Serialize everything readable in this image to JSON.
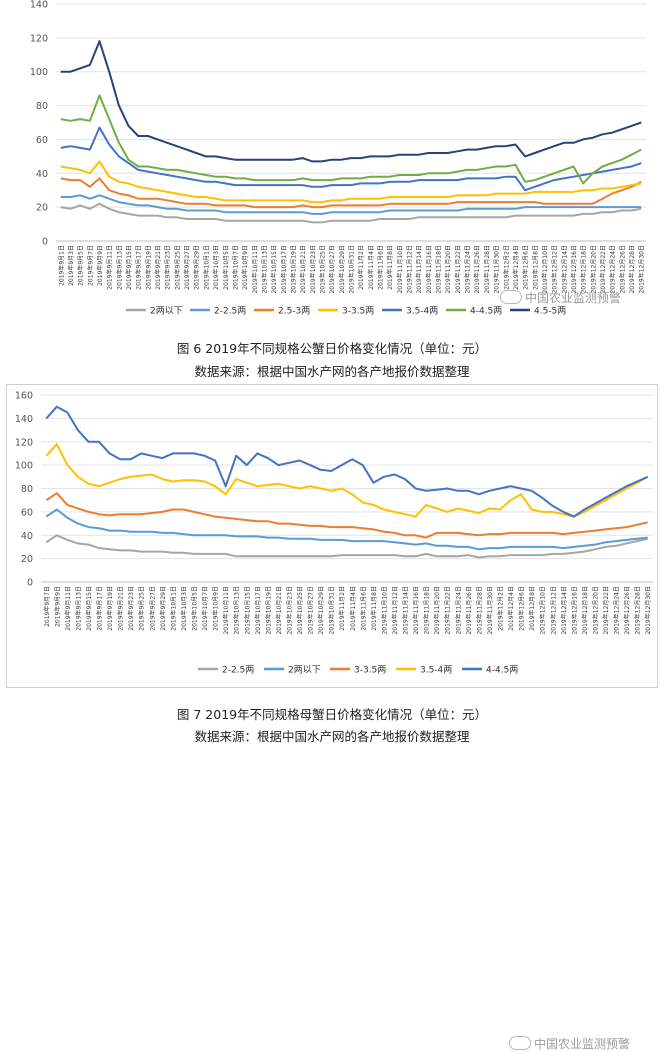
{
  "charts": [
    {
      "caption": "图 6 2019年不同规格公蟹日价格变化情况（单位：元）",
      "source": "数据来源：根据中国水产网的各产地报价数据整理",
      "watermark": "中国农业监测预警",
      "chart_data": {
        "type": "line",
        "title": "",
        "ylim": [
          0,
          140
        ],
        "yticks": [
          0,
          20,
          40,
          60,
          80,
          100,
          120,
          140
        ],
        "categories": [
          "2019年9月1日",
          "2019年9月3日",
          "2019年9月5日",
          "2019年9月7日",
          "2019年9月9日",
          "2019年9月11日",
          "2019年9月13日",
          "2019年9月15日",
          "2019年9月17日",
          "2019年9月19日",
          "2019年9月21日",
          "2019年9月23日",
          "2019年9月25日",
          "2019年9月27日",
          "2019年9月29日",
          "2019年10月1日",
          "2019年10月3日",
          "2019年10月5日",
          "2019年10月7日",
          "2019年10月9日",
          "2019年10月11日",
          "2019年10月13日",
          "2019年10月15日",
          "2019年10月17日",
          "2019年10月19日",
          "2019年10月21日",
          "2019年10月23日",
          "2019年10月25日",
          "2019年10月27日",
          "2019年10月29日",
          "2019年10月31日",
          "2019年11月2日",
          "2019年11月4日",
          "2019年11月6日",
          "2019年11月8日",
          "2019年11月10日",
          "2019年11月12日",
          "2019年11月14日",
          "2019年11月16日",
          "2019年11月18日",
          "2019年11月20日",
          "2019年11月22日",
          "2019年11月24日",
          "2019年11月26日",
          "2019年11月28日",
          "2019年11月30日",
          "2019年12月2日",
          "2019年12月4日",
          "2019年12月6日",
          "2019年12月8日",
          "2019年12月10日",
          "2019年12月12日",
          "2019年12月14日",
          "2019年12月16日",
          "2019年12月18日",
          "2019年12月20日",
          "2019年12月22日",
          "2019年12月24日",
          "2019年12月26日",
          "2019年12月28日",
          "2019年12月30日"
        ],
        "series": [
          {
            "name": "2两以下",
            "color": "#a6a6a6",
            "values": [
              20,
              19,
              21,
              19,
              22,
              19,
              17,
              16,
              15,
              15,
              15,
              14,
              14,
              13,
              13,
              13,
              13,
              12,
              12,
              12,
              12,
              12,
              12,
              12,
              12,
              12,
              11,
              11,
              12,
              12,
              12,
              12,
              12,
              13,
              13,
              13,
              13,
              14,
              14,
              14,
              14,
              14,
              14,
              14,
              14,
              14,
              14,
              15,
              15,
              15,
              15,
              15,
              15,
              15,
              16,
              16,
              17,
              17,
              18,
              18,
              19
            ]
          },
          {
            "name": "2-2.5两",
            "color": "#5b9bd5",
            "values": [
              26,
              26,
              27,
              25,
              27,
              25,
              23,
              22,
              21,
              21,
              20,
              19,
              19,
              18,
              18,
              18,
              18,
              17,
              17,
              17,
              17,
              17,
              17,
              17,
              17,
              17,
              16,
              16,
              17,
              17,
              17,
              17,
              17,
              17,
              18,
              18,
              18,
              18,
              18,
              18,
              18,
              18,
              19,
              19,
              19,
              19,
              19,
              19,
              20,
              20,
              20,
              20,
              20,
              20,
              20,
              20,
              20,
              20,
              20,
              20,
              20
            ]
          },
          {
            "name": "2.5-3两",
            "color": "#ed7d31",
            "values": [
              37,
              36,
              36,
              32,
              37,
              30,
              28,
              27,
              25,
              25,
              25,
              24,
              23,
              22,
              22,
              22,
              21,
              21,
              21,
              21,
              20,
              20,
              20,
              20,
              20,
              21,
              20,
              20,
              21,
              21,
              21,
              21,
              21,
              21,
              22,
              22,
              22,
              22,
              22,
              22,
              22,
              23,
              23,
              23,
              23,
              23,
              23,
              23,
              23,
              23,
              22,
              22,
              22,
              22,
              22,
              22,
              25,
              28,
              30,
              32,
              35
            ]
          },
          {
            "name": "3-3.5两",
            "color": "#ffc000",
            "values": [
              44,
              43,
              42,
              40,
              47,
              38,
              35,
              34,
              32,
              31,
              30,
              29,
              28,
              27,
              26,
              26,
              25,
              24,
              24,
              24,
              24,
              24,
              24,
              24,
              24,
              24,
              23,
              23,
              24,
              24,
              25,
              25,
              25,
              25,
              26,
              26,
              26,
              26,
              26,
              26,
              26,
              27,
              27,
              27,
              27,
              28,
              28,
              28,
              28,
              29,
              29,
              29,
              29,
              29,
              30,
              30,
              31,
              31,
              32,
              33,
              34
            ]
          },
          {
            "name": "3.5-4两",
            "color": "#4472c4",
            "values": [
              55,
              56,
              55,
              54,
              67,
              57,
              50,
              46,
              42,
              41,
              40,
              39,
              38,
              37,
              36,
              35,
              35,
              34,
              33,
              33,
              33,
              33,
              33,
              33,
              33,
              33,
              32,
              32,
              33,
              33,
              33,
              34,
              34,
              34,
              35,
              35,
              35,
              36,
              36,
              36,
              36,
              36,
              37,
              37,
              37,
              37,
              38,
              38,
              30,
              32,
              34,
              36,
              37,
              38,
              39,
              40,
              41,
              42,
              43,
              44,
              46
            ]
          },
          {
            "name": "4-4.5两",
            "color": "#70ad47",
            "values": [
              72,
              71,
              72,
              71,
              86,
              72,
              58,
              48,
              44,
              44,
              43,
              42,
              42,
              41,
              40,
              39,
              38,
              38,
              37,
              37,
              36,
              36,
              36,
              36,
              36,
              37,
              36,
              36,
              36,
              37,
              37,
              37,
              38,
              38,
              38,
              39,
              39,
              39,
              40,
              40,
              40,
              41,
              42,
              42,
              43,
              44,
              44,
              45,
              35,
              36,
              38,
              40,
              42,
              44,
              34,
              40,
              44,
              46,
              48,
              51,
              54
            ]
          },
          {
            "name": "4.5-5两",
            "color": "#264478",
            "values": [
              100,
              100,
              102,
              104,
              118,
              100,
              80,
              68,
              62,
              62,
              60,
              58,
              56,
              54,
              52,
              50,
              50,
              49,
              48,
              48,
              48,
              48,
              48,
              48,
              48,
              49,
              47,
              47,
              48,
              48,
              49,
              49,
              50,
              50,
              50,
              51,
              51,
              51,
              52,
              52,
              52,
              53,
              54,
              54,
              55,
              56,
              56,
              57,
              50,
              52,
              54,
              56,
              58,
              58,
              60,
              61,
              63,
              64,
              66,
              68,
              70
            ]
          }
        ]
      }
    },
    {
      "caption": "图 7 2019年不同规格母蟹日价格变化情况（单位：元）",
      "source": "数据来源：根据中国水产网的各产地报价数据整理",
      "watermark": "中国农业监测预警",
      "chart_data": {
        "type": "line",
        "title": "",
        "ylim": [
          0,
          160
        ],
        "yticks": [
          0,
          20,
          40,
          60,
          80,
          100,
          120,
          140,
          160
        ],
        "categories": [
          "2019年9月7日",
          "2019年9月9日",
          "2019年9月11日",
          "2019年9月13日",
          "2019年9月15日",
          "2019年9月17日",
          "2019年9月19日",
          "2019年9月21日",
          "2019年9月23日",
          "2019年9月25日",
          "2019年9月27日",
          "2019年9月29日",
          "2019年10月1日",
          "2019年10月3日",
          "2019年10月5日",
          "2019年10月7日",
          "2019年10月9日",
          "2019年10月11日",
          "2019年10月13日",
          "2019年10月15日",
          "2019年10月17日",
          "2019年10月19日",
          "2019年10月21日",
          "2019年10月23日",
          "2019年10月25日",
          "2019年10月27日",
          "2019年10月29日",
          "2019年10月31日",
          "2019年11月2日",
          "2019年11月4日",
          "2019年11月6日",
          "2019年11月8日",
          "2019年11月10日",
          "2019年11月12日",
          "2019年11月14日",
          "2019年11月16日",
          "2019年11月18日",
          "2019年11月20日",
          "2019年11月22日",
          "2019年11月24日",
          "2019年11月26日",
          "2019年11月28日",
          "2019年11月30日",
          "2019年12月2日",
          "2019年12月4日",
          "2019年12月6日",
          "2019年12月8日",
          "2019年12月10日",
          "2019年12月12日",
          "2019年12月14日",
          "2019年12月16日",
          "2019年12月18日",
          "2019年12月20日",
          "2019年12月22日",
          "2019年12月24日",
          "2019年12月26日",
          "2019年12月28日",
          "2019年12月30日"
        ],
        "series": [
          {
            "name": "2-2.5两",
            "color": "#a6a6a6",
            "values": [
              34,
              40,
              36,
              33,
              32,
              29,
              28,
              27,
              27,
              26,
              26,
              26,
              25,
              25,
              24,
              24,
              24,
              24,
              22,
              22,
              22,
              22,
              22,
              22,
              22,
              22,
              22,
              22,
              23,
              23,
              23,
              23,
              23,
              23,
              22,
              22,
              24,
              22,
              22,
              22,
              23,
              21,
              22,
              22,
              23,
              23,
              23,
              23,
              24,
              24,
              25,
              26,
              28,
              30,
              31,
              33,
              35,
              37
            ]
          },
          {
            "name": "2两以下",
            "color": "#5b9bd5",
            "values": [
              56,
              62,
              55,
              50,
              47,
              46,
              44,
              44,
              43,
              43,
              43,
              42,
              42,
              41,
              40,
              40,
              40,
              40,
              39,
              39,
              39,
              38,
              38,
              37,
              37,
              37,
              36,
              36,
              36,
              35,
              35,
              35,
              35,
              34,
              33,
              32,
              33,
              31,
              31,
              30,
              30,
              28,
              29,
              29,
              30,
              30,
              30,
              30,
              30,
              29,
              30,
              31,
              32,
              34,
              35,
              36,
              37,
              38
            ]
          },
          {
            "name": "3-3.5两",
            "color": "#ed7d31",
            "values": [
              70,
              76,
              66,
              63,
              60,
              58,
              57,
              58,
              58,
              58,
              59,
              60,
              62,
              62,
              60,
              58,
              56,
              55,
              54,
              53,
              52,
              52,
              50,
              50,
              49,
              48,
              48,
              47,
              47,
              47,
              46,
              45,
              43,
              42,
              40,
              40,
              38,
              42,
              42,
              42,
              41,
              40,
              41,
              41,
              42,
              42,
              42,
              42,
              42,
              41,
              42,
              43,
              44,
              45,
              46,
              47,
              49,
              51
            ]
          },
          {
            "name": "3.5-4两",
            "color": "#ffc000",
            "values": [
              108,
              118,
              100,
              90,
              84,
              82,
              85,
              88,
              90,
              91,
              92,
              88,
              86,
              87,
              87,
              86,
              82,
              75,
              88,
              85,
              82,
              83,
              84,
              82,
              80,
              82,
              80,
              78,
              80,
              75,
              68,
              66,
              62,
              60,
              58,
              56,
              66,
              63,
              60,
              63,
              61,
              59,
              63,
              62,
              70,
              75,
              62,
              60,
              60,
              58,
              56,
              60,
              65,
              70,
              75,
              80,
              85,
              90
            ]
          },
          {
            "name": "4-4.5两",
            "color": "#4472c4",
            "values": [
              140,
              150,
              145,
              130,
              120,
              120,
              110,
              105,
              105,
              110,
              108,
              106,
              110,
              110,
              110,
              108,
              104,
              82,
              108,
              100,
              110,
              106,
              100,
              102,
              104,
              100,
              96,
              95,
              100,
              105,
              100,
              85,
              90,
              92,
              88,
              80,
              78,
              79,
              80,
              78,
              78,
              75,
              78,
              80,
              82,
              80,
              78,
              72,
              65,
              60,
              56,
              62,
              67,
              72,
              77,
              82,
              86,
              90
            ]
          }
        ]
      }
    }
  ]
}
